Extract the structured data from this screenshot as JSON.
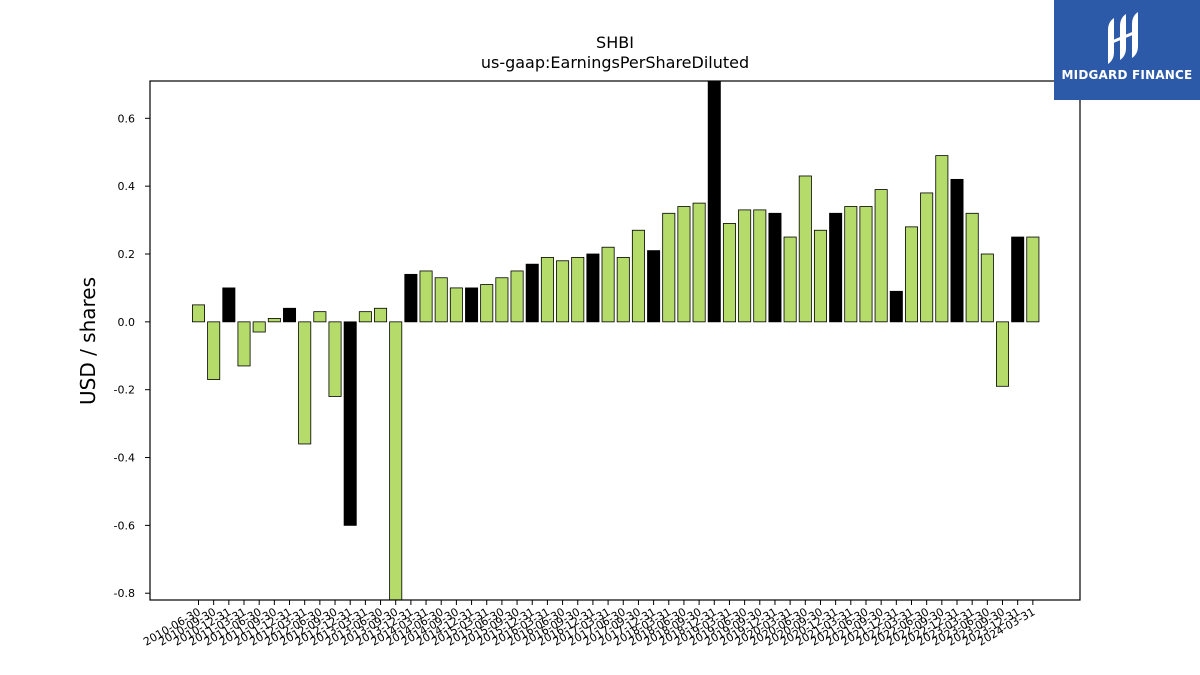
{
  "logo": {
    "text": "MIDGARD FINANCE",
    "background": "#2d5aa8"
  },
  "chart_data": {
    "type": "bar",
    "title": "SHBI",
    "subtitle": "us-gaap:EarningsPerShareDiluted",
    "xlabel": "",
    "ylabel": "USD / shares",
    "ylim": [
      -0.82,
      0.71
    ],
    "yticks": [
      -0.8,
      -0.6,
      -0.4,
      -0.2,
      0.0,
      0.2,
      0.4,
      0.6
    ],
    "grid": false,
    "colors": {
      "quarter": "#b5dc6a",
      "year_end": "#000000"
    },
    "categories": [
      "2010-06-30",
      "2010-09-30",
      "2010-12-31",
      "2011-03-31",
      "2011-06-30",
      "2011-09-30",
      "2011-12-31",
      "2012-03-31",
      "2012-06-30",
      "2012-09-30",
      "2012-12-31",
      "2013-03-31",
      "2013-06-30",
      "2013-09-30",
      "2013-12-31",
      "2014-03-31",
      "2014-06-30",
      "2014-09-30",
      "2014-12-31",
      "2015-03-31",
      "2015-06-30",
      "2015-09-30",
      "2015-12-31",
      "2016-03-31",
      "2016-06-30",
      "2016-09-30",
      "2016-12-31",
      "2017-03-31",
      "2017-06-30",
      "2017-09-30",
      "2017-12-31",
      "2018-03-31",
      "2018-06-30",
      "2018-09-30",
      "2018-12-31",
      "2019-03-31",
      "2019-06-30",
      "2019-09-30",
      "2019-12-31",
      "2020-03-31",
      "2020-06-30",
      "2020-09-30",
      "2020-12-31",
      "2021-03-31",
      "2021-06-30",
      "2021-09-30",
      "2021-12-31",
      "2022-03-31",
      "2022-06-30",
      "2022-09-30",
      "2022-12-31",
      "2023-03-31",
      "2023-06-30",
      "2023-09-30",
      "2023-12-31",
      "2024-03-31"
    ],
    "values": [
      0.05,
      -0.17,
      0.1,
      -0.13,
      -0.03,
      0.01,
      0.04,
      -0.36,
      0.03,
      -0.22,
      -0.6,
      0.03,
      0.04,
      -0.82,
      0.14,
      0.15,
      0.13,
      0.1,
      0.1,
      0.11,
      0.13,
      0.15,
      0.17,
      0.19,
      0.18,
      0.19,
      0.2,
      0.22,
      0.19,
      0.27,
      0.21,
      0.32,
      0.34,
      0.35,
      0.71,
      0.29,
      0.33,
      0.33,
      0.32,
      0.25,
      0.43,
      0.27,
      0.32,
      0.34,
      0.34,
      0.39,
      0.09,
      0.28,
      0.38,
      0.49,
      0.42,
      0.32,
      0.2,
      -0.19,
      0.25,
      0.25
    ],
    "year_end_flags": [
      false,
      false,
      true,
      false,
      false,
      false,
      true,
      false,
      false,
      false,
      true,
      false,
      false,
      false,
      true,
      false,
      false,
      false,
      true,
      false,
      false,
      false,
      true,
      false,
      false,
      false,
      true,
      false,
      false,
      false,
      true,
      false,
      false,
      false,
      true,
      false,
      false,
      false,
      true,
      false,
      false,
      false,
      true,
      false,
      false,
      false,
      true,
      false,
      false,
      false,
      true,
      false,
      false,
      false,
      true,
      false
    ]
  }
}
